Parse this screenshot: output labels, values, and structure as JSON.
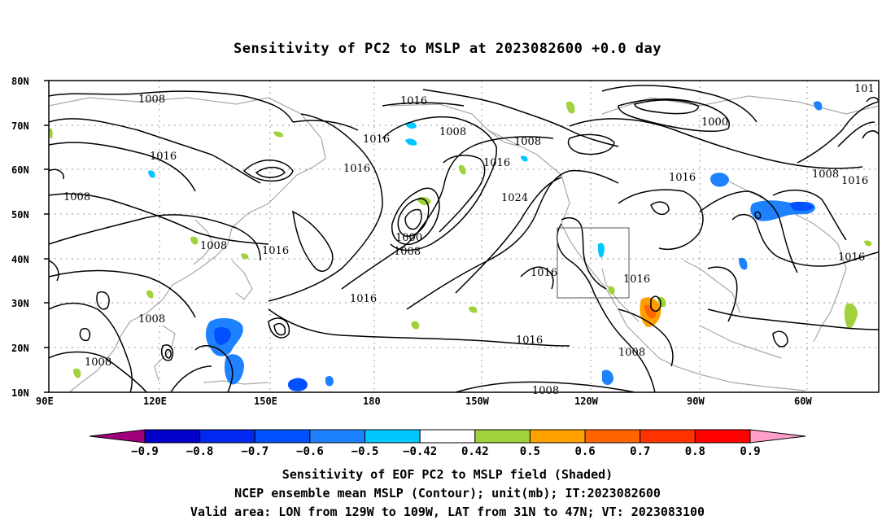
{
  "title": "Sensitivity of PC2 to MSLP at 2023082600 +0.0 day",
  "lat_labels": [
    "80N",
    "70N",
    "60N",
    "50N",
    "40N",
    "30N",
    "20N",
    "10N"
  ],
  "lon_labels": [
    "90E",
    "120E",
    "150E",
    "180",
    "150W",
    "120W",
    "90W",
    "60W"
  ],
  "contour_labels": [
    "1008",
    "1016",
    "1008",
    "1016",
    "1016",
    "1016",
    "1008",
    "1008",
    "1016",
    "1024",
    "1000",
    "1008",
    "1016",
    "1008",
    "1000",
    "1016",
    "1008",
    "1016",
    "1016",
    "1016",
    "1008",
    "1016",
    "1016",
    "1008",
    "1008",
    "1016",
    "1008",
    "101",
    "1016",
    "1008"
  ],
  "colorbar": {
    "ticks": [
      "−0.9",
      "−0.8",
      "−0.7",
      "−0.6",
      "−0.5",
      "−0.42",
      "0.42",
      "0.5",
      "0.6",
      "0.7",
      "0.8",
      "0.9"
    ],
    "colors": [
      "#a0007a",
      "#0000c8",
      "#0028f0",
      "#0050ff",
      "#1e82ff",
      "#00c8ff",
      "#ffffff",
      "#a0d23c",
      "#ffa000",
      "#ff6400",
      "#ff3200",
      "#ff0000",
      "#ff9ec8"
    ]
  },
  "footer": {
    "line1": "Sensitivity of EOF PC2 to MSLP field (Shaded)",
    "line2": "NCEP ensemble mean MSLP (Contour); unit(mb); IT:2023082600",
    "line3": "Valid area: LON from 129W to 109W, LAT from 31N to 47N; VT: 2023083100"
  }
}
